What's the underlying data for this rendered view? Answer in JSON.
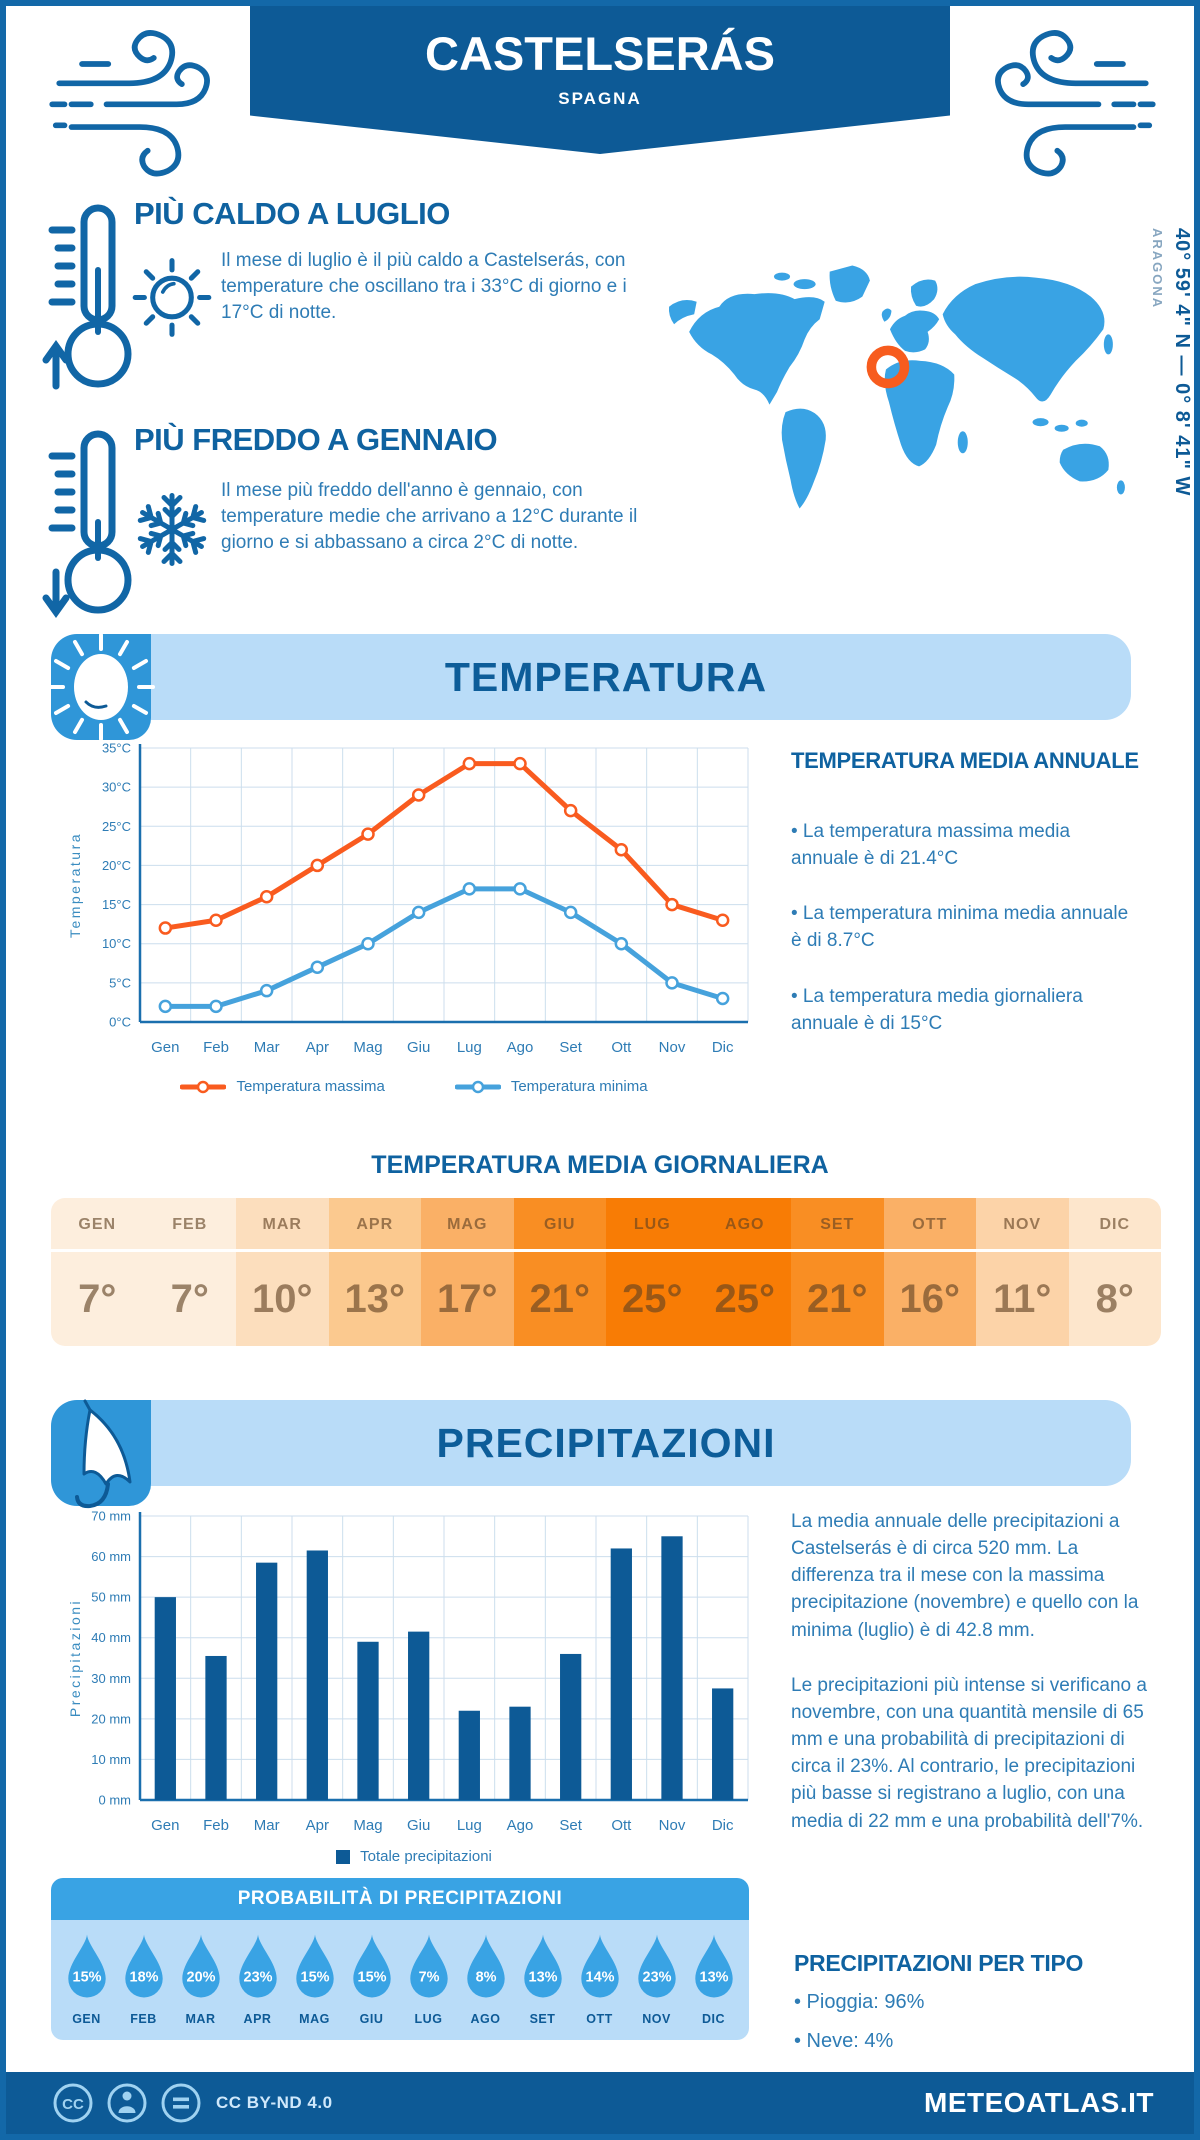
{
  "header": {
    "title": "CASTELSERÁS",
    "subtitle": "SPAGNA"
  },
  "hot": {
    "title": "PIÙ CALDO A LUGLIO",
    "text": "Il mese di luglio è il più caldo a Castelserás, con temperature che oscillano tra i 33°C di giorno e i 17°C di notte."
  },
  "cold": {
    "title": "PIÙ FREDDO A GENNAIO",
    "text": "Il mese più freddo dell'anno è gennaio, con temperature medie che arrivano a 12°C durante il giorno e si abbassano a circa 2°C di notte."
  },
  "map": {
    "coordinates": "40° 59' 4\" N — 0° 8' 41\" W",
    "region": "ARAGONA",
    "map_color": "#39a3e4",
    "marker_color": "#f75c1e"
  },
  "temperature": {
    "banner": "TEMPERATURA",
    "annual_title": "TEMPERATURA MEDIA ANNUALE",
    "bullets": [
      "• La temperatura massima media annuale è di 21.4°C",
      "• La temperatura minima media annuale è di 8.7°C",
      "• La temperatura media giornaliera annuale è di 15°C"
    ],
    "daily_title": "TEMPERATURA MEDIA GIORNALIERA",
    "table": {
      "months": [
        "GEN",
        "FEB",
        "MAR",
        "APR",
        "MAG",
        "GIU",
        "LUG",
        "AGO",
        "SET",
        "OTT",
        "NOV",
        "DIC"
      ],
      "values": [
        "7°",
        "7°",
        "10°",
        "13°",
        "17°",
        "21°",
        "25°",
        "25°",
        "21°",
        "16°",
        "11°",
        "8°"
      ],
      "colors": [
        "#fdeedd",
        "#fdeedd",
        "#fcdebd",
        "#fbc98f",
        "#fab066",
        "#f98e23",
        "#f87c05",
        "#f87c05",
        "#f98e23",
        "#fab066",
        "#fcd3a8",
        "#fde6cc"
      ]
    }
  },
  "precipitation": {
    "banner": "PRECIPITAZIONI",
    "paragraphs": [
      "La media annuale delle precipitazioni a Castelserás è di circa 520 mm. La differenza tra il mese con la massima precipitazione (novembre) e quello con la minima (luglio) è di 42.8 mm.",
      "Le precipitazioni più intense si verificano a novembre, con una quantità mensile di 65 mm e una probabilità di precipitazioni di circa il 23%. Al contrario, le precipitazioni più basse si registrano a luglio, con una media di 22 mm e una probabilità dell'7%."
    ],
    "probability": {
      "title": "PROBABILITÀ DI PRECIPITAZIONI",
      "months": [
        "GEN",
        "FEB",
        "MAR",
        "APR",
        "MAG",
        "GIU",
        "LUG",
        "AGO",
        "SET",
        "OTT",
        "NOV",
        "DIC"
      ],
      "values": [
        "15%",
        "18%",
        "20%",
        "23%",
        "15%",
        "15%",
        "7%",
        "8%",
        "13%",
        "14%",
        "23%",
        "13%"
      ]
    },
    "types": {
      "title": "PRECIPITAZIONI PER TIPO",
      "items": [
        "• Pioggia: 96%",
        "• Neve: 4%"
      ]
    }
  },
  "footer": {
    "license": "CC BY-ND 4.0",
    "brand": "METEOATLAS.IT"
  },
  "chart_data": [
    {
      "type": "line",
      "title": "",
      "categories": [
        "Gen",
        "Feb",
        "Mar",
        "Apr",
        "Mag",
        "Giu",
        "Lug",
        "Ago",
        "Set",
        "Ott",
        "Nov",
        "Dic"
      ],
      "series": [
        {
          "name": "Temperatura massima",
          "color": "#f95b1f",
          "values": [
            12,
            13,
            16,
            20,
            24,
            29,
            33,
            33,
            27,
            22,
            15,
            13
          ]
        },
        {
          "name": "Temperatura minima",
          "color": "#46a2dc",
          "values": [
            2,
            2,
            4,
            7,
            10,
            14,
            17,
            17,
            14,
            10,
            5,
            3
          ]
        }
      ],
      "ylabel": "Temperatura",
      "ylim": [
        0,
        35
      ],
      "ytick_step": 5,
      "ytick_suffix": "°C",
      "grid": true,
      "legend_position": "bottom"
    },
    {
      "type": "bar",
      "title": "",
      "categories": [
        "Gen",
        "Feb",
        "Mar",
        "Apr",
        "Mag",
        "Giu",
        "Lug",
        "Ago",
        "Set",
        "Ott",
        "Nov",
        "Dic"
      ],
      "series": [
        {
          "name": "Totale precipitazioni",
          "color": "#0d5a96",
          "values": [
            50,
            35.5,
            58.5,
            61.5,
            39,
            41.5,
            22,
            23,
            36,
            62,
            65,
            27.5
          ]
        }
      ],
      "ylabel": "Precipitazioni",
      "ylim": [
        0,
        70
      ],
      "ytick_step": 10,
      "ytick_suffix": " mm",
      "grid": true,
      "legend_position": "bottom"
    }
  ]
}
